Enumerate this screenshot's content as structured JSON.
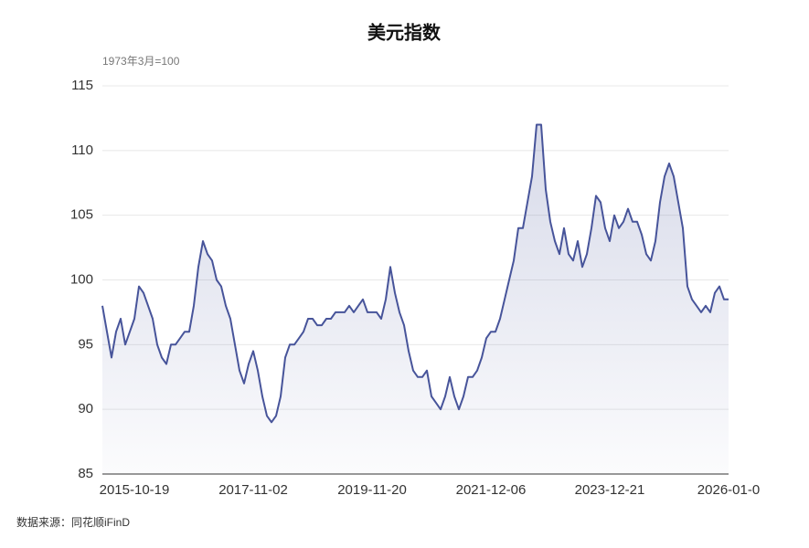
{
  "chart_data": {
    "type": "line",
    "title": "美元指数",
    "subtitle": "1973年3月=100",
    "source": "数据来源：同花顺iFinD",
    "color": "#47549a",
    "area": true,
    "grid": true,
    "ylim": [
      85,
      115
    ],
    "yticks": [
      85,
      90,
      95,
      100,
      105,
      110,
      115
    ],
    "categories": [
      null,
      null,
      null,
      null,
      null,
      null,
      null,
      "2015-10-19",
      null,
      null,
      null,
      null,
      null,
      null,
      null,
      null,
      null,
      null,
      null,
      null,
      null,
      null,
      null,
      null,
      null,
      null,
      null,
      null,
      null,
      null,
      null,
      null,
      null,
      "2017-11-02",
      null,
      null,
      null,
      null,
      null,
      null,
      null,
      null,
      null,
      null,
      null,
      null,
      null,
      null,
      null,
      null,
      null,
      null,
      null,
      null,
      null,
      null,
      null,
      null,
      null,
      "2019-11-20",
      null,
      null,
      null,
      null,
      null,
      null,
      null,
      null,
      null,
      null,
      null,
      null,
      null,
      null,
      null,
      null,
      null,
      null,
      null,
      null,
      null,
      null,
      null,
      null,
      null,
      "2021-12-06",
      null,
      null,
      null,
      null,
      null,
      null,
      null,
      null,
      null,
      null,
      null,
      null,
      null,
      null,
      null,
      null,
      null,
      null,
      null,
      null,
      null,
      null,
      null,
      null,
      null,
      "2023-12-21",
      null,
      null,
      null,
      null,
      null,
      null,
      null,
      null,
      null,
      null,
      null,
      null,
      null,
      null,
      null,
      null,
      null,
      null,
      null,
      null,
      null,
      null,
      null,
      null,
      null,
      "2026-01-0"
    ],
    "values": [
      98,
      96,
      94,
      96,
      97,
      95,
      96,
      97,
      99.5,
      99,
      98,
      97,
      95,
      94,
      93.5,
      95,
      95,
      95.5,
      96,
      96,
      98,
      101,
      103,
      102,
      101.5,
      100,
      99.5,
      98,
      97,
      95,
      93,
      92,
      93.5,
      94.5,
      93,
      91,
      89.5,
      89,
      89.5,
      91,
      94,
      95,
      95,
      95.5,
      96,
      97,
      97,
      96.5,
      96.5,
      97,
      97,
      97.5,
      97.5,
      97.5,
      98,
      97.5,
      98,
      98.5,
      97.5,
      97.5,
      97.5,
      97,
      98.5,
      101,
      99,
      97.5,
      96.5,
      94.5,
      93,
      92.5,
      92.5,
      93,
      91,
      90.5,
      90,
      91,
      92.5,
      91,
      90,
      91,
      92.5,
      92.5,
      93,
      94,
      95.5,
      96,
      96,
      97,
      98.5,
      100,
      101.5,
      104,
      104,
      106,
      108,
      112,
      112,
      107,
      104.5,
      103,
      102,
      104,
      102,
      101.5,
      103,
      101,
      102,
      104,
      106.5,
      106,
      104,
      103,
      105,
      104,
      104.5,
      105.5,
      104.5,
      104.5,
      103.5,
      102,
      101.5,
      103,
      106,
      108,
      109,
      108,
      106,
      104,
      99.5,
      98.5,
      98,
      97.5,
      98,
      97.5,
      99,
      99.5,
      98.5,
      98.5
    ]
  }
}
